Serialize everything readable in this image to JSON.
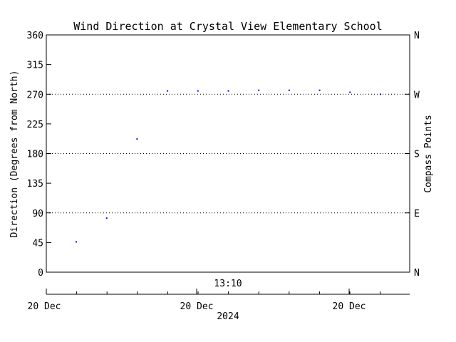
{
  "chart_data": {
    "type": "scatter",
    "title": "Wind Direction at Crystal View Elementary School",
    "ylabel": "Direction (Degrees from North)",
    "ylabel_right": "Compass Points",
    "ylim": [
      0,
      360
    ],
    "yticks": [
      0,
      45,
      90,
      135,
      180,
      225,
      270,
      315,
      360
    ],
    "compass_points": [
      {
        "label": "N",
        "value": 0
      },
      {
        "label": "E",
        "value": 90
      },
      {
        "label": "S",
        "value": 180
      },
      {
        "label": "W",
        "value": 270
      },
      {
        "label": "N",
        "value": 360
      }
    ],
    "grid_lines": [
      90,
      180,
      270
    ],
    "top_time_label": "13:10",
    "x_tick_labels": [
      "20 Dec",
      "20 Dec",
      "20 Dec"
    ],
    "x_year_label": "2024",
    "point_color": "#0000ff",
    "series": [
      {
        "values": [
          46,
          82,
          202,
          275,
          275,
          275,
          276,
          276,
          276,
          273,
          270
        ]
      }
    ]
  }
}
